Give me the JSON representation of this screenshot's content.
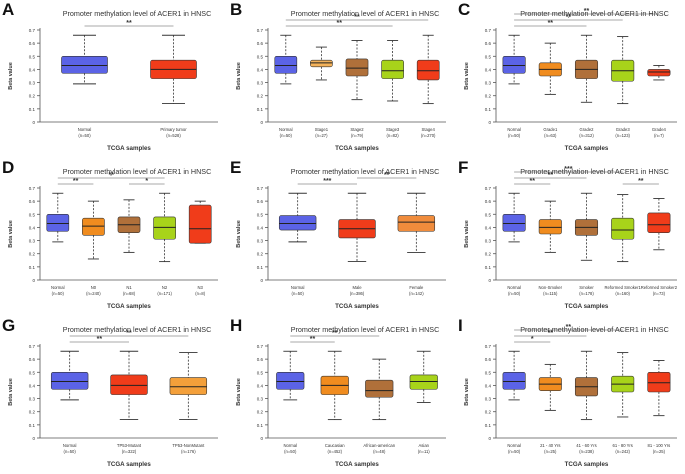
{
  "figure": {
    "colors": {
      "normal": "#5b63e6",
      "red": "#f03c1a",
      "peach": "#f4b25a",
      "orange": "#f08b1f",
      "brown": "#b0703a",
      "green": "#a8d31a",
      "lightorange": "#f08c3c"
    }
  },
  "chart_data": [
    {
      "label": "A",
      "type": "box",
      "title": "Promoter methylation level of ACER1 in HNSC",
      "xlabel": "TCGA samples",
      "ylabel": "Beta value",
      "ylim": [
        0,
        0.7
      ],
      "yticks": [
        "0",
        "0.1",
        "0.2",
        "0.3",
        "0.4",
        "0.5",
        "0.6",
        "0.7"
      ],
      "groups": [
        {
          "name": "Normal",
          "n": "(n=50)",
          "color": "#5b63e6",
          "min": 0.29,
          "q1": 0.37,
          "median": 0.43,
          "q3": 0.5,
          "max": 0.66
        },
        {
          "name": "Primary tumor",
          "n": "(n=528)",
          "color": "#f03c1a",
          "min": 0.14,
          "q1": 0.33,
          "median": 0.4,
          "q3": 0.47,
          "max": 0.66
        }
      ],
      "sig": [
        {
          "from": 0,
          "to": 1,
          "label": "**",
          "level": 0
        }
      ]
    },
    {
      "label": "B",
      "type": "box",
      "title": "Promoter methylation level of ACER1 in HNSC",
      "xlabel": "TCGA samples",
      "ylabel": "Beta value",
      "ylim": [
        0,
        0.7
      ],
      "yticks": [
        "0",
        "0.1",
        "0.2",
        "0.3",
        "0.4",
        "0.5",
        "0.6",
        "0.7"
      ],
      "groups": [
        {
          "name": "Normal",
          "n": "(n=50)",
          "color": "#5b63e6",
          "min": 0.29,
          "q1": 0.37,
          "median": 0.43,
          "q3": 0.5,
          "max": 0.66
        },
        {
          "name": "Stage1",
          "n": "(n=27)",
          "color": "#f4b25a",
          "min": 0.32,
          "q1": 0.42,
          "median": 0.45,
          "q3": 0.47,
          "max": 0.57
        },
        {
          "name": "Stage2",
          "n": "(n=79)",
          "color": "#b0703a",
          "min": 0.17,
          "q1": 0.35,
          "median": 0.41,
          "q3": 0.48,
          "max": 0.62
        },
        {
          "name": "Stage3",
          "n": "(n=82)",
          "color": "#a8d31a",
          "min": 0.16,
          "q1": 0.33,
          "median": 0.39,
          "q3": 0.47,
          "max": 0.62
        },
        {
          "name": "Stage4",
          "n": "(n=270)",
          "color": "#f03c1a",
          "min": 0.14,
          "q1": 0.32,
          "median": 0.39,
          "q3": 0.47,
          "max": 0.66
        }
      ],
      "sig": [
        {
          "from": 0,
          "to": 4,
          "label": "**",
          "level": 1
        },
        {
          "from": 0,
          "to": 3,
          "label": "**",
          "level": 0
        }
      ]
    },
    {
      "label": "C",
      "type": "box",
      "title": "Promoter methylation level of ACER1 in HNSC",
      "xlabel": "TCGA samples",
      "ylabel": "Beta value",
      "ylim": [
        0,
        0.7
      ],
      "yticks": [
        "0",
        "0.1",
        "0.2",
        "0.3",
        "0.4",
        "0.5",
        "0.6",
        "0.7"
      ],
      "groups": [
        {
          "name": "Normal",
          "n": "(n=50)",
          "color": "#5b63e6",
          "min": 0.29,
          "q1": 0.37,
          "median": 0.43,
          "q3": 0.5,
          "max": 0.66
        },
        {
          "name": "Grade1",
          "n": "(n=63)",
          "color": "#f08c1f",
          "min": 0.21,
          "q1": 0.35,
          "median": 0.4,
          "q3": 0.45,
          "max": 0.6
        },
        {
          "name": "Grade2",
          "n": "(n=312)",
          "color": "#b0703a",
          "min": 0.15,
          "q1": 0.33,
          "median": 0.4,
          "q3": 0.47,
          "max": 0.66
        },
        {
          "name": "Grade3",
          "n": "(n=123)",
          "color": "#a8d31a",
          "min": 0.14,
          "q1": 0.31,
          "median": 0.39,
          "q3": 0.47,
          "max": 0.65
        },
        {
          "name": "Grade4",
          "n": "(n=7)",
          "color": "#f03c1a",
          "min": 0.32,
          "q1": 0.35,
          "median": 0.38,
          "q3": 0.4,
          "max": 0.43
        }
      ],
      "sig": [
        {
          "from": 0,
          "to": 4,
          "label": "**",
          "level": 2
        },
        {
          "from": 0,
          "to": 3,
          "label": "**",
          "level": 1
        },
        {
          "from": 0,
          "to": 2,
          "label": "**",
          "level": 0
        }
      ]
    },
    {
      "label": "D",
      "type": "box",
      "title": "Promoter methylation level of ACER1 in HNSC",
      "xlabel": "TCGA samples",
      "ylabel": "Beta value",
      "ylim": [
        0,
        0.7
      ],
      "yticks": [
        "0",
        "0.1",
        "0.2",
        "0.3",
        "0.4",
        "0.5",
        "0.6",
        "0.7"
      ],
      "groups": [
        {
          "name": "Normal",
          "n": "(n=50)",
          "color": "#5b63e6",
          "min": 0.29,
          "q1": 0.37,
          "median": 0.43,
          "q3": 0.5,
          "max": 0.66
        },
        {
          "name": "N0",
          "n": "(n=240)",
          "color": "#f08c1f",
          "min": 0.16,
          "q1": 0.34,
          "median": 0.41,
          "q3": 0.47,
          "max": 0.6
        },
        {
          "name": "N1",
          "n": "(n=68)",
          "color": "#b0703a",
          "min": 0.21,
          "q1": 0.36,
          "median": 0.42,
          "q3": 0.48,
          "max": 0.61
        },
        {
          "name": "N2",
          "n": "(n=171)",
          "color": "#a8d31a",
          "min": 0.14,
          "q1": 0.31,
          "median": 0.4,
          "q3": 0.48,
          "max": 0.66
        },
        {
          "name": "N3",
          "n": "(n=8)",
          "color": "#f03c1a",
          "min": 0.28,
          "q1": 0.28,
          "median": 0.39,
          "q3": 0.57,
          "max": 0.6
        }
      ],
      "sig": [
        {
          "from": 0,
          "to": 3,
          "label": "**",
          "level": 1
        },
        {
          "from": 0,
          "to": 1,
          "label": "**",
          "level": 0
        },
        {
          "from": 2,
          "to": 3,
          "label": "*",
          "level": 0
        }
      ]
    },
    {
      "label": "E",
      "type": "box",
      "title": "Promoter methylation level of ACER1 in HNSC",
      "xlabel": "TCGA samples",
      "ylabel": "Beta value",
      "ylim": [
        0,
        0.7
      ],
      "yticks": [
        "0",
        "0.1",
        "0.2",
        "0.3",
        "0.4",
        "0.5",
        "0.6",
        "0.7"
      ],
      "groups": [
        {
          "name": "Normal",
          "n": "(n=50)",
          "color": "#5b63e6",
          "min": 0.29,
          "q1": 0.38,
          "median": 0.43,
          "q3": 0.49,
          "max": 0.66
        },
        {
          "name": "Male",
          "n": "(n=386)",
          "color": "#f03c1a",
          "min": 0.14,
          "q1": 0.32,
          "median": 0.39,
          "q3": 0.46,
          "max": 0.66
        },
        {
          "name": "Female",
          "n": "(n=142)",
          "color": "#f08c3c",
          "min": 0.21,
          "q1": 0.37,
          "median": 0.44,
          "q3": 0.49,
          "max": 0.66
        }
      ],
      "sig": [
        {
          "from": 0,
          "to": 1,
          "label": "***",
          "level": 0
        },
        {
          "from": 1,
          "to": 2,
          "label": "**",
          "level": 1
        }
      ]
    },
    {
      "label": "F",
      "type": "box",
      "title": "Promoter methylation level of ACER1 in HNSC",
      "xlabel": "TCGA samples",
      "ylabel": "Beta value",
      "ylim": [
        0,
        0.7
      ],
      "yticks": [
        "0",
        "0.1",
        "0.2",
        "0.3",
        "0.4",
        "0.5",
        "0.6",
        "0.7"
      ],
      "groups": [
        {
          "name": "Normal",
          "n": "(n=50)",
          "color": "#5b63e6",
          "min": 0.29,
          "q1": 0.37,
          "median": 0.43,
          "q3": 0.5,
          "max": 0.66
        },
        {
          "name": "Non-Smoker",
          "n": "(n=115)",
          "color": "#f08c1f",
          "min": 0.21,
          "q1": 0.35,
          "median": 0.4,
          "q3": 0.46,
          "max": 0.6
        },
        {
          "name": "Smoker",
          "n": "(n=178)",
          "color": "#b0703a",
          "min": 0.15,
          "q1": 0.34,
          "median": 0.4,
          "q3": 0.46,
          "max": 0.66
        },
        {
          "name": "Reformed Smoker1",
          "n": "(n=160)",
          "color": "#a8d31a",
          "min": 0.14,
          "q1": 0.31,
          "median": 0.38,
          "q3": 0.47,
          "max": 0.65
        },
        {
          "name": "Reformed Smoker2",
          "n": "(n=73)",
          "color": "#f03c1a",
          "min": 0.23,
          "q1": 0.36,
          "median": 0.42,
          "q3": 0.51,
          "max": 0.62
        }
      ],
      "sig": [
        {
          "from": 0,
          "to": 3,
          "label": "***",
          "level": 2
        },
        {
          "from": 0,
          "to": 2,
          "label": "**",
          "level": 1
        },
        {
          "from": 0,
          "to": 1,
          "label": "**",
          "level": 0
        },
        {
          "from": 3,
          "to": 4,
          "label": "**",
          "level": 0
        }
      ]
    },
    {
      "label": "G",
      "type": "box",
      "title": "Promoter methylation level of ACER1 in HNSC",
      "xlabel": "TCGA samples",
      "ylabel": "Beta value",
      "ylim": [
        0,
        0.7
      ],
      "yticks": [
        "0",
        "0.1",
        "0.2",
        "0.3",
        "0.4",
        "0.5",
        "0.6",
        "0.7"
      ],
      "groups": [
        {
          "name": "Normal",
          "n": "(n=50)",
          "color": "#5b63e6",
          "min": 0.29,
          "q1": 0.37,
          "median": 0.43,
          "q3": 0.5,
          "max": 0.66
        },
        {
          "name": "TP53-Mutant",
          "n": "(n=322)",
          "color": "#f03c1a",
          "min": 0.14,
          "q1": 0.33,
          "median": 0.4,
          "q3": 0.48,
          "max": 0.66
        },
        {
          "name": "TP53-NonMutant",
          "n": "(n=176)",
          "color": "#f4a03a",
          "min": 0.14,
          "q1": 0.33,
          "median": 0.39,
          "q3": 0.46,
          "max": 0.65
        }
      ],
      "sig": [
        {
          "from": 0,
          "to": 2,
          "label": "**",
          "level": 1
        },
        {
          "from": 0,
          "to": 1,
          "label": "**",
          "level": 0
        }
      ]
    },
    {
      "label": "H",
      "type": "box",
      "title": "Promoter methylation level of ACER1 in HNSC",
      "xlabel": "TCGA samples",
      "ylabel": "Beta value",
      "ylim": [
        0,
        0.7
      ],
      "yticks": [
        "0",
        "0.1",
        "0.2",
        "0.3",
        "0.4",
        "0.5",
        "0.6",
        "0.7"
      ],
      "groups": [
        {
          "name": "Normal",
          "n": "(n=50)",
          "color": "#5b63e6",
          "min": 0.29,
          "q1": 0.37,
          "median": 0.43,
          "q3": 0.5,
          "max": 0.66
        },
        {
          "name": "Caucasian",
          "n": "(n=452)",
          "color": "#f08c1f",
          "min": 0.14,
          "q1": 0.33,
          "median": 0.4,
          "q3": 0.47,
          "max": 0.66
        },
        {
          "name": "African-american",
          "n": "(n=48)",
          "color": "#b0703a",
          "min": 0.14,
          "q1": 0.31,
          "median": 0.36,
          "q3": 0.44,
          "max": 0.6
        },
        {
          "name": "Asian",
          "n": "(n=11)",
          "color": "#a8d31a",
          "min": 0.27,
          "q1": 0.37,
          "median": 0.43,
          "q3": 0.48,
          "max": 0.66
        }
      ],
      "sig": [
        {
          "from": 0,
          "to": 2,
          "label": "**",
          "level": 1
        },
        {
          "from": 0,
          "to": 1,
          "label": "**",
          "level": 0
        }
      ]
    },
    {
      "label": "I",
      "type": "box",
      "title": "Promoter methylation level of ACER1 in HNSC",
      "xlabel": "TCGA samples",
      "ylabel": "Beta value",
      "ylim": [
        0,
        0.7
      ],
      "yticks": [
        "0",
        "0.1",
        "0.2",
        "0.3",
        "0.4",
        "0.5",
        "0.6",
        "0.7"
      ],
      "groups": [
        {
          "name": "Normal",
          "n": "(n=50)",
          "color": "#5b63e6",
          "min": 0.29,
          "q1": 0.37,
          "median": 0.43,
          "q3": 0.5,
          "max": 0.66
        },
        {
          "name": "21 - 40 Yrs",
          "n": "(n=25)",
          "color": "#f08c1f",
          "min": 0.21,
          "q1": 0.36,
          "median": 0.41,
          "q3": 0.46,
          "max": 0.56
        },
        {
          "name": "41 - 60 Yrs",
          "n": "(n=238)",
          "color": "#b0703a",
          "min": 0.14,
          "q1": 0.32,
          "median": 0.39,
          "q3": 0.46,
          "max": 0.66
        },
        {
          "name": "61 - 80 Yrs",
          "n": "(n=242)",
          "color": "#a8d31a",
          "min": 0.16,
          "q1": 0.35,
          "median": 0.41,
          "q3": 0.47,
          "max": 0.65
        },
        {
          "name": "81 - 100 Yrs",
          "n": "(n=25)",
          "color": "#f03c1a",
          "min": 0.17,
          "q1": 0.35,
          "median": 0.42,
          "q3": 0.5,
          "max": 0.59
        }
      ],
      "sig": [
        {
          "from": 0,
          "to": 3,
          "label": "**",
          "level": 2
        },
        {
          "from": 0,
          "to": 2,
          "label": "**",
          "level": 1
        },
        {
          "from": 0,
          "to": 1,
          "label": "*",
          "level": 0
        }
      ]
    }
  ]
}
